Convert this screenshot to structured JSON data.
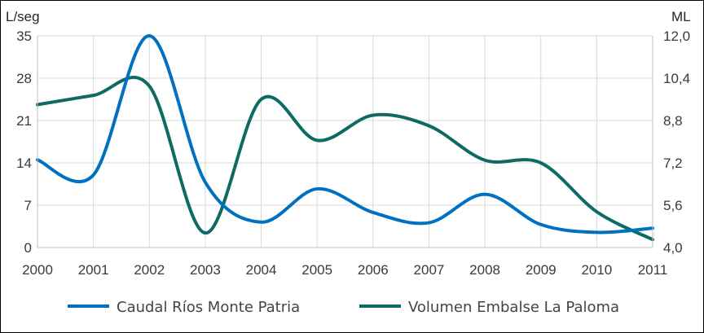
{
  "chart_data": {
    "type": "line",
    "y_left_unit": "L/seg",
    "y_right_unit": "ML",
    "x": [
      2000,
      2001,
      2002,
      2003,
      2004,
      2005,
      2006,
      2007,
      2008,
      2009,
      2010,
      2011
    ],
    "x_tick_labels": [
      "2000",
      "2001",
      "2002",
      "2003",
      "2004",
      "2005",
      "2006",
      "2007",
      "2008",
      "2009",
      "2010",
      "2011"
    ],
    "y_left_ticks": [
      "0",
      "7",
      "14",
      "21",
      "28",
      "35"
    ],
    "y_right_ticks": [
      "4,0",
      "5,6",
      "7,2",
      "8,8",
      "10,4",
      "12,0"
    ],
    "ylim_left": [
      0,
      35
    ],
    "ylim_right": [
      4.0,
      12.0
    ],
    "grid": true,
    "legend_position": "bottom",
    "series": [
      {
        "name": "Caudal Ríos Monte Patria",
        "axis": "left",
        "color": "#0070c0",
        "values": [
          14.5,
          12.0,
          35.0,
          10.8,
          4.2,
          9.7,
          5.8,
          4.1,
          8.8,
          3.8,
          2.5,
          3.2
        ]
      },
      {
        "name": "Volumen Embalse La Paloma",
        "axis": "right",
        "color": "#0e6b63",
        "values": [
          9.4,
          9.75,
          10.1,
          4.55,
          9.6,
          8.05,
          9.0,
          8.6,
          7.3,
          7.2,
          5.35,
          4.3
        ]
      }
    ]
  }
}
